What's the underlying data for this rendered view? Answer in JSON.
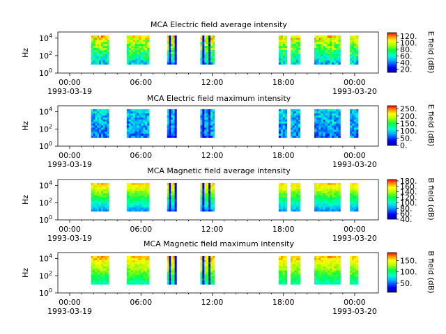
{
  "chart_data": [
    {
      "type": "heatmap",
      "title": "MCA  Electric field average intensity",
      "ylabel": "Hz",
      "colorbar_label": "E field (dB)",
      "colorbar_ticks": [
        "20.",
        "40.",
        "60.",
        "80.",
        "100.",
        "120."
      ],
      "colorbar_range": [
        10,
        130
      ],
      "y_ticks": [
        {
          "base": "10",
          "exp": "0"
        },
        {
          "base": "10",
          "exp": "2"
        },
        {
          "base": "10",
          "exp": "4"
        }
      ],
      "x_ticks": [
        "00:00",
        "06:00",
        "12:00",
        "18:00",
        "00:00"
      ],
      "x_dates": [
        "1993-03-19",
        "",
        "",
        "",
        "1993-03-20"
      ],
      "data_segments_hours": [
        [
          1.8,
          3.3
        ],
        [
          4.8,
          6.7
        ],
        [
          8.2,
          9.0
        ],
        [
          11.0,
          12.2
        ],
        [
          17.6,
          18.3
        ],
        [
          18.6,
          19.4
        ],
        [
          20.6,
          22.8
        ],
        [
          23.6,
          24.3
        ]
      ],
      "frequency_range_hz": [
        10,
        20000
      ]
    },
    {
      "type": "heatmap",
      "title": "MCA  Electric field maximum intensity",
      "ylabel": "Hz",
      "colorbar_label": "E field (dB)",
      "colorbar_ticks": [
        "0.",
        "50.",
        "100.",
        "150.",
        "200.",
        "250."
      ],
      "colorbar_range": [
        0,
        270
      ],
      "y_ticks": [
        {
          "base": "10",
          "exp": "0"
        },
        {
          "base": "10",
          "exp": "2"
        },
        {
          "base": "10",
          "exp": "4"
        }
      ],
      "x_ticks": [
        "00:00",
        "06:00",
        "12:00",
        "18:00",
        "00:00"
      ],
      "x_dates": [
        "1993-03-19",
        "",
        "",
        "",
        "1993-03-20"
      ],
      "data_segments_hours": [
        [
          1.8,
          3.3
        ],
        [
          4.8,
          6.7
        ],
        [
          8.2,
          9.0
        ],
        [
          11.0,
          12.2
        ],
        [
          17.6,
          18.3
        ],
        [
          18.6,
          19.4
        ],
        [
          20.6,
          22.8
        ],
        [
          23.6,
          24.3
        ]
      ],
      "frequency_range_hz": [
        10,
        20000
      ]
    },
    {
      "type": "heatmap",
      "title": "MCA  Magnetic field average intensity",
      "ylabel": "Hz",
      "colorbar_label": "B field (dB)",
      "colorbar_ticks": [
        "40.",
        "60.",
        "80.",
        "100.",
        "120.",
        "140.",
        "160.",
        "180."
      ],
      "colorbar_range": [
        40,
        185
      ],
      "y_ticks": [
        {
          "base": "10",
          "exp": "0"
        },
        {
          "base": "10",
          "exp": "2"
        },
        {
          "base": "10",
          "exp": "4"
        }
      ],
      "x_ticks": [
        "00:00",
        "06:00",
        "12:00",
        "18:00",
        "00:00"
      ],
      "x_dates": [
        "1993-03-19",
        "",
        "",
        "",
        "1993-03-20"
      ],
      "data_segments_hours": [
        [
          1.8,
          3.3
        ],
        [
          4.8,
          6.7
        ],
        [
          8.2,
          9.0
        ],
        [
          11.0,
          12.2
        ],
        [
          17.6,
          18.3
        ],
        [
          18.6,
          19.4
        ],
        [
          20.6,
          22.8
        ],
        [
          23.6,
          24.3
        ]
      ],
      "frequency_range_hz": [
        10,
        20000
      ]
    },
    {
      "type": "heatmap",
      "title": "MCA  Magnetic field maximum intensity",
      "ylabel": "Hz",
      "colorbar_label": "B field (dB)",
      "colorbar_ticks": [
        "50.",
        "100.",
        "150."
      ],
      "colorbar_range": [
        10,
        185
      ],
      "y_ticks": [
        {
          "base": "10",
          "exp": "0"
        },
        {
          "base": "10",
          "exp": "2"
        },
        {
          "base": "10",
          "exp": "4"
        }
      ],
      "x_ticks": [
        "00:00",
        "06:00",
        "12:00",
        "18:00",
        "00:00"
      ],
      "x_dates": [
        "1993-03-19",
        "",
        "",
        "",
        "1993-03-20"
      ],
      "data_segments_hours": [
        [
          1.8,
          3.3
        ],
        [
          4.8,
          6.7
        ],
        [
          8.2,
          9.0
        ],
        [
          11.0,
          12.2
        ],
        [
          17.6,
          18.3
        ],
        [
          18.6,
          19.4
        ],
        [
          20.6,
          22.8
        ],
        [
          23.6,
          24.3
        ]
      ],
      "frequency_range_hz": [
        10,
        20000
      ]
    }
  ]
}
